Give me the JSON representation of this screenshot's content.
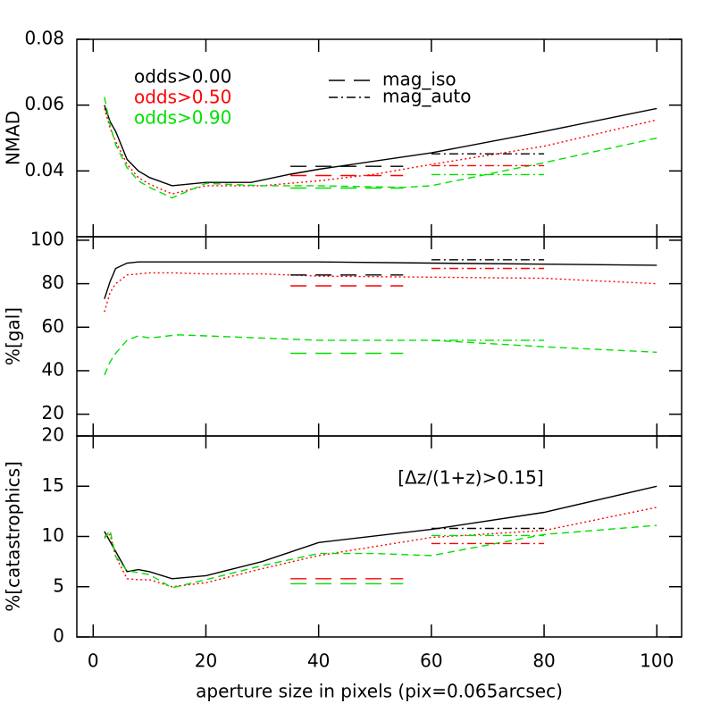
{
  "chart_data": [
    {
      "type": "line",
      "ylabel": "NMAD",
      "xlim": [
        -2.9,
        104.4
      ],
      "ylim": [
        0.02,
        0.08
      ],
      "yticks": [
        0.04,
        0.06,
        0.08
      ],
      "series": [
        {
          "name": "odds>0.00",
          "color": "#000000",
          "style": "solid",
          "x": [
            2,
            3,
            4,
            6,
            8,
            10,
            14,
            20,
            28,
            35,
            40,
            60,
            80,
            100
          ],
          "values": [
            0.06,
            0.055,
            0.052,
            0.0435,
            0.04,
            0.038,
            0.0355,
            0.0365,
            0.0365,
            0.039,
            0.0405,
            0.0455,
            0.052,
            0.059
          ]
        },
        {
          "name": "odds>0.50",
          "color": "#ff0000",
          "style": "dotted",
          "x": [
            2,
            3,
            4,
            6,
            8,
            10,
            14,
            20,
            30,
            40,
            50,
            60,
            80,
            100
          ],
          "values": [
            0.059,
            0.053,
            0.049,
            0.042,
            0.038,
            0.036,
            0.033,
            0.0355,
            0.0355,
            0.037,
            0.039,
            0.042,
            0.0475,
            0.0555
          ]
        },
        {
          "name": "odds>0.90",
          "color": "#00e000",
          "style": "dashed",
          "x": [
            2,
            3,
            4,
            6,
            8,
            10,
            14,
            20,
            30,
            40,
            55,
            60,
            80,
            100
          ],
          "values": [
            0.0625,
            0.054,
            0.048,
            0.041,
            0.037,
            0.035,
            0.0318,
            0.0362,
            0.0355,
            0.0355,
            0.035,
            0.0355,
            0.0425,
            0.05
          ]
        },
        {
          "name": "mag_iso",
          "color": "#000000",
          "style": "longdash",
          "x": [
            35,
            55
          ],
          "values": [
            0.0414,
            0.0414
          ]
        },
        {
          "color": "#ff0000",
          "style": "longdash",
          "x": [
            35,
            55
          ],
          "values": [
            0.0386,
            0.0386
          ]
        },
        {
          "color": "#00e000",
          "style": "longdash",
          "x": [
            35,
            55
          ],
          "values": [
            0.0348,
            0.0348
          ]
        },
        {
          "name": "mag_auto",
          "color": "#000000",
          "style": "dashdot",
          "x": [
            60,
            80
          ],
          "values": [
            0.0452,
            0.0452
          ]
        },
        {
          "color": "#ff0000",
          "style": "dashdot",
          "x": [
            60,
            80
          ],
          "values": [
            0.0416,
            0.0416
          ]
        },
        {
          "color": "#00e000",
          "style": "dashdot",
          "x": [
            60,
            80
          ],
          "values": [
            0.0389,
            0.0389
          ]
        }
      ]
    },
    {
      "type": "line",
      "ylabel": "%[gal]",
      "xlim": [
        -2.9,
        104.4
      ],
      "ylim": [
        10,
        101.6
      ],
      "yticks": [
        20,
        40,
        60,
        80,
        100
      ],
      "series": [
        {
          "color": "#000000",
          "style": "solid",
          "x": [
            2,
            3,
            4,
            6,
            8,
            20,
            40,
            60,
            80,
            100
          ],
          "values": [
            73,
            81,
            87,
            89.5,
            90,
            90,
            90,
            89.5,
            89,
            88.5
          ]
        },
        {
          "color": "#ff0000",
          "style": "dotted",
          "x": [
            2,
            3,
            4,
            6,
            10,
            14,
            20,
            30,
            40,
            60,
            80,
            100
          ],
          "values": [
            67,
            76,
            80,
            84,
            85,
            85,
            84.5,
            84.5,
            83.5,
            83,
            82.5,
            80
          ]
        },
        {
          "color": "#00e000",
          "style": "dashed",
          "x": [
            2,
            3,
            4,
            6,
            8,
            10,
            15,
            20,
            30,
            40,
            60,
            80,
            100
          ],
          "values": [
            38,
            44,
            48,
            54,
            56,
            55,
            56.5,
            56,
            55,
            54,
            54,
            51,
            48.5
          ]
        },
        {
          "color": "#000000",
          "style": "longdash",
          "x": [
            35,
            55
          ],
          "values": [
            84,
            84
          ]
        },
        {
          "color": "#ff0000",
          "style": "longdash",
          "x": [
            35,
            55
          ],
          "values": [
            79,
            79
          ]
        },
        {
          "color": "#00e000",
          "style": "longdash",
          "x": [
            35,
            55
          ],
          "values": [
            48,
            48
          ]
        },
        {
          "color": "#000000",
          "style": "dashdot",
          "x": [
            60,
            80
          ],
          "values": [
            91,
            91
          ]
        },
        {
          "color": "#ff0000",
          "style": "dashdot",
          "x": [
            60,
            80
          ],
          "values": [
            87,
            87
          ]
        },
        {
          "color": "#00e000",
          "style": "dashdot",
          "x": [
            60,
            80
          ],
          "values": [
            54,
            54
          ]
        }
      ]
    },
    {
      "type": "line",
      "ylabel": "%[catastrophics]",
      "xlabel": "aperture size in pixels (pix=0.065arcsec)",
      "annotation": "[Δz/(1+z)>0.15]",
      "xlim": [
        -2.9,
        104.4
      ],
      "xticks": [
        0,
        20,
        40,
        60,
        80,
        100
      ],
      "ylim": [
        0,
        20
      ],
      "yticks": [
        0,
        5,
        10,
        15,
        20
      ],
      "series": [
        {
          "color": "#000000",
          "style": "solid",
          "x": [
            2,
            3,
            4,
            6,
            8,
            10,
            14,
            20,
            30,
            40,
            60,
            80,
            100
          ],
          "values": [
            10.5,
            9.5,
            8.5,
            6.5,
            6.7,
            6.5,
            5.8,
            6.1,
            7.5,
            9.4,
            10.7,
            12.4,
            15
          ]
        },
        {
          "color": "#ff0000",
          "style": "dotted",
          "x": [
            2,
            3,
            4,
            6,
            8,
            10,
            14,
            20,
            30,
            40,
            60,
            80,
            100
          ],
          "values": [
            10,
            10.2,
            8,
            5.8,
            5.7,
            5.7,
            5,
            5.4,
            6.8,
            8.1,
            9.9,
            10.6,
            12.9
          ]
        },
        {
          "color": "#00e000",
          "style": "dashed",
          "x": [
            2,
            3,
            4,
            6,
            8,
            10,
            14,
            20,
            30,
            40,
            50,
            60,
            80,
            100
          ],
          "values": [
            9.8,
            10.6,
            8,
            6.6,
            6.4,
            6.2,
            4.9,
            5.7,
            7.1,
            8.3,
            8.3,
            8.1,
            10.2,
            11.1
          ]
        },
        {
          "color": "#ff0000",
          "style": "longdash",
          "x": [
            35,
            55
          ],
          "values": [
            5.8,
            5.8
          ]
        },
        {
          "color": "#00e000",
          "style": "longdash",
          "x": [
            35,
            55
          ],
          "values": [
            5.3,
            5.3
          ]
        },
        {
          "color": "#000000",
          "style": "dashdot",
          "x": [
            60,
            80
          ],
          "values": [
            10.8,
            10.8
          ]
        },
        {
          "color": "#00e000",
          "style": "dashdot",
          "x": [
            60,
            80
          ],
          "values": [
            10.1,
            10.1
          ]
        },
        {
          "color": "#ff0000",
          "style": "dashdot",
          "x": [
            60,
            80
          ],
          "values": [
            9.3,
            9.3
          ]
        }
      ]
    }
  ]
}
